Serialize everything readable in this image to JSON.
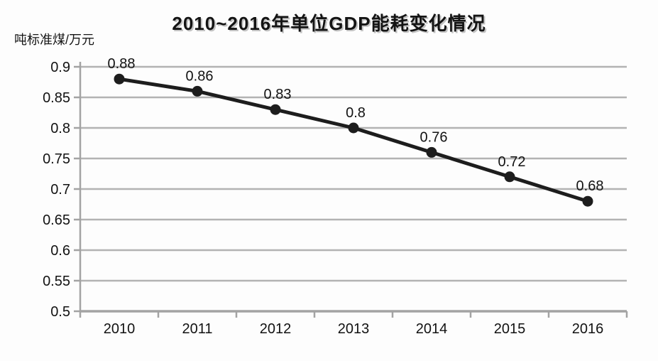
{
  "title": "2010~2016年单位GDP能耗变化情况",
  "y_axis_unit": "吨标准煤/万元",
  "chart_data": {
    "type": "line",
    "title": "2010~2016年单位GDP能耗变化情况",
    "xlabel": "",
    "ylabel": "吨标准煤/万元",
    "categories": [
      "2010",
      "2011",
      "2012",
      "2013",
      "2014",
      "2015",
      "2016"
    ],
    "values": [
      0.88,
      0.86,
      0.83,
      0.8,
      0.76,
      0.72,
      0.68
    ],
    "point_labels": [
      "0.88",
      "0.86",
      "0.83",
      "0.8",
      "0.76",
      "0.72",
      "0.68"
    ],
    "ylim": [
      0.5,
      0.9
    ],
    "ytick_step": 0.05,
    "ytick_labels": [
      "0.5",
      "0.55",
      "0.6",
      "0.65",
      "0.7",
      "0.75",
      "0.8",
      "0.85",
      "0.9"
    ],
    "grid": true,
    "legend_position": "none",
    "colors": {
      "line": "#1d1d1d",
      "marker": "#1d1d1d",
      "grid": "#b3b3b3",
      "axis": "#a3a3a3",
      "text": "#121212",
      "background": "#fdfdfd"
    }
  }
}
